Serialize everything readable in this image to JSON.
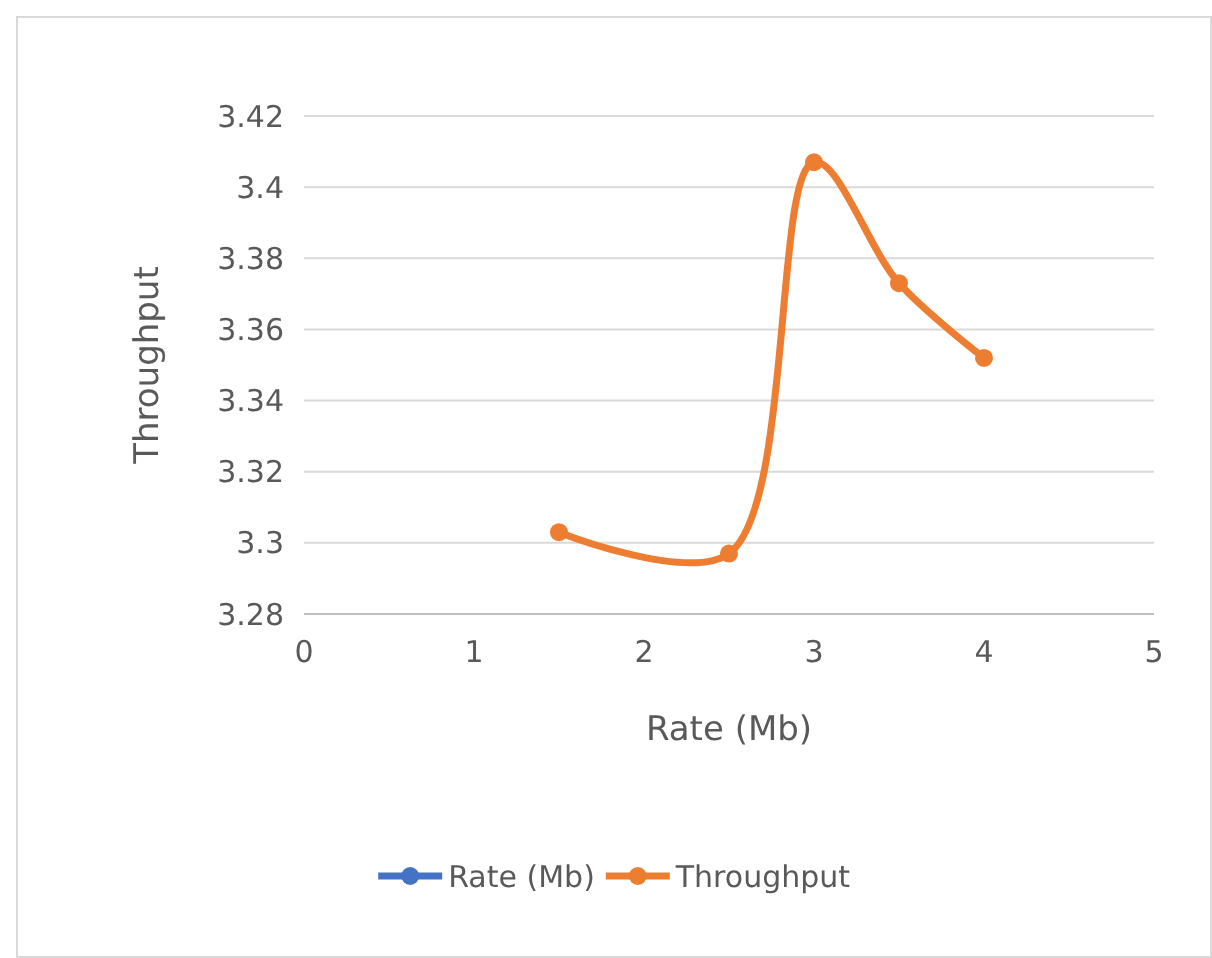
{
  "chart_data": {
    "type": "line",
    "xlabel": "Rate (Mb)",
    "ylabel": "Throughput",
    "x": [
      1.5,
      2.5,
      3,
      3.5,
      4
    ],
    "series": [
      {
        "name": "Rate (Mb)",
        "color": "#4472c4",
        "values": [
          null,
          null,
          null,
          null,
          null
        ]
      },
      {
        "name": "Throughput",
        "color": "#ed7d31",
        "values": [
          3.303,
          3.297,
          3.407,
          3.373,
          3.352
        ]
      }
    ],
    "xlim": [
      0,
      5
    ],
    "xticks": [
      0,
      1,
      2,
      3,
      4,
      5
    ],
    "ylim": [
      3.28,
      3.42
    ],
    "yticks": [
      3.28,
      3.3,
      3.32,
      3.34,
      3.36,
      3.38,
      3.4,
      3.42
    ],
    "grid": "y",
    "legend": "bottom",
    "marker": "circle",
    "line_style": "solid"
  }
}
